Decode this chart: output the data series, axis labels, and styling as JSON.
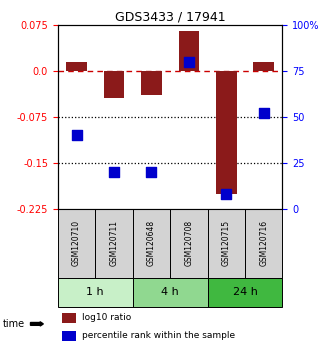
{
  "title": "GDS3433 / 17941",
  "samples": [
    "GSM120710",
    "GSM120711",
    "GSM120648",
    "GSM120708",
    "GSM120715",
    "GSM120716"
  ],
  "groups": [
    {
      "label": "1 h",
      "indices": [
        0,
        1
      ],
      "color": "#c8f0c8"
    },
    {
      "label": "4 h",
      "indices": [
        2,
        3
      ],
      "color": "#90d890"
    },
    {
      "label": "24 h",
      "indices": [
        4,
        5
      ],
      "color": "#40b840"
    }
  ],
  "log10_ratio": [
    0.015,
    -0.045,
    -0.04,
    0.065,
    -0.2,
    0.015
  ],
  "percentile_rank": [
    40,
    20,
    20,
    80,
    8,
    52
  ],
  "bar_color": "#8B1A1A",
  "dot_color": "#0000CC",
  "ylim_left": [
    -0.225,
    0.075
  ],
  "ylim_right": [
    0,
    100
  ],
  "yticks_left": [
    0.075,
    0.0,
    -0.075,
    -0.15,
    -0.225
  ],
  "yticks_right": [
    100,
    75,
    50,
    25,
    0
  ],
  "hline_zero": 0.0,
  "hlines_dotted": [
    -0.075,
    -0.15
  ],
  "time_label": "time",
  "legend_bar_label": "log10 ratio",
  "legend_dot_label": "percentile rank within the sample"
}
